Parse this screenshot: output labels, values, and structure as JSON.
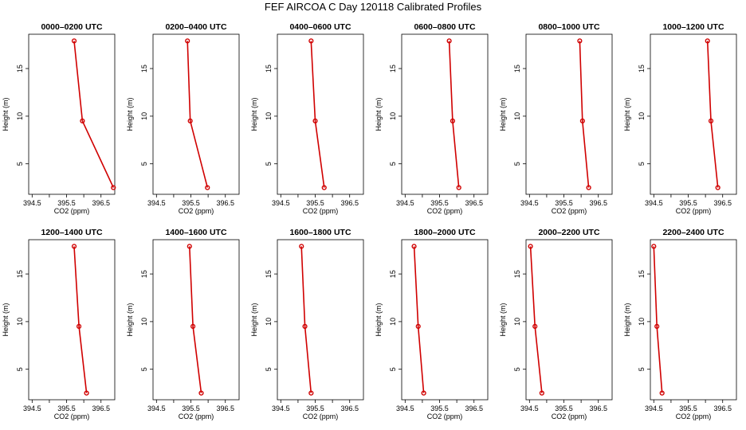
{
  "title": "FEF AIRCOA C  Day 120118  Calibrated Profiles",
  "chart_data": {
    "type": "line",
    "xlabel": "CO2 (ppm)",
    "ylabel": "Height (m)",
    "xlim": [
      394.4,
      396.9
    ],
    "ylim": [
      1.8,
      18.6
    ],
    "x_ticks": [
      394.5,
      395.5,
      396.5
    ],
    "x_tick_marks": [
      394.5,
      395,
      395.5,
      396,
      396.5
    ],
    "y_ticks": [
      5,
      10,
      15
    ],
    "heights": [
      17.9,
      9.5,
      2.5
    ],
    "panels": [
      {
        "title": "0000–0200 UTC",
        "co2": [
          395.72,
          395.96,
          396.86
        ]
      },
      {
        "title": "0200–0400 UTC",
        "co2": [
          395.4,
          395.48,
          395.98
        ]
      },
      {
        "title": "0400–0600 UTC",
        "co2": [
          395.38,
          395.5,
          395.76
        ]
      },
      {
        "title": "0600–0800 UTC",
        "co2": [
          395.78,
          395.88,
          396.06
        ]
      },
      {
        "title": "0800–1000 UTC",
        "co2": [
          395.96,
          396.04,
          396.22
        ]
      },
      {
        "title": "1000–1200 UTC",
        "co2": [
          396.06,
          396.16,
          396.36
        ]
      },
      {
        "title": "1200–1400 UTC",
        "co2": [
          395.72,
          395.86,
          396.08
        ]
      },
      {
        "title": "1400–1600 UTC",
        "co2": [
          395.46,
          395.56,
          395.8
        ]
      },
      {
        "title": "1600–1800 UTC",
        "co2": [
          395.1,
          395.2,
          395.38
        ]
      },
      {
        "title": "1800–2000 UTC",
        "co2": [
          394.76,
          394.88,
          395.04
        ]
      },
      {
        "title": "2000–2200 UTC",
        "co2": [
          394.53,
          394.66,
          394.86
        ]
      },
      {
        "title": "2200–2400 UTC",
        "co2": [
          394.5,
          394.59,
          394.74
        ]
      }
    ]
  }
}
